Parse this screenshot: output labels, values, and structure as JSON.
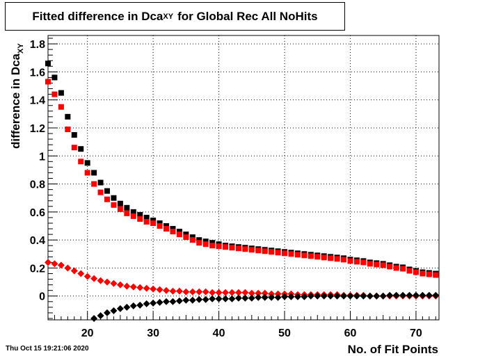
{
  "title": {
    "prefix": "Fitted difference in Dca",
    "subscript": "XY",
    "suffix": "for Global Rec All NoHits"
  },
  "timestamp": "Thu Oct 15 19:21:06 2020",
  "chart_data": {
    "type": "scatter",
    "title": "Fitted difference in Dca_XY for Global Rec All NoHits",
    "xlabel": "No. of Fit Points",
    "ylabel_prefix": "difference in Dca",
    "ylabel_subscript": "XY",
    "xlim": [
      14,
      73.5
    ],
    "ylim": [
      -0.17,
      1.86
    ],
    "grid": true,
    "xticks": [
      20,
      30,
      40,
      50,
      60,
      70
    ],
    "yticks": [
      0,
      0.2,
      0.4,
      0.6,
      0.8,
      1,
      1.2,
      1.4,
      1.6,
      1.8
    ],
    "ytick_labels": [
      "0",
      "0.2",
      "0.4",
      "0.6",
      "0.8",
      "1",
      "1.2",
      "1.4",
      "1.6",
      "1.8"
    ],
    "series": [
      {
        "color": "#000000",
        "marker": "square",
        "x": [
          14,
          15,
          16,
          17,
          18,
          19,
          20,
          21,
          22,
          23,
          24,
          25,
          26,
          27,
          28,
          29,
          30,
          31,
          32,
          33,
          34,
          35,
          36,
          37,
          38,
          39,
          40,
          41,
          42,
          43,
          44,
          45,
          46,
          47,
          48,
          49,
          50,
          51,
          52,
          53,
          54,
          55,
          56,
          57,
          58,
          59,
          60,
          61,
          62,
          63,
          64,
          65,
          66,
          67,
          68,
          69,
          70,
          71,
          72,
          73
        ],
        "y": [
          1.66,
          1.56,
          1.45,
          1.28,
          1.15,
          1.05,
          0.95,
          0.88,
          0.81,
          0.75,
          0.7,
          0.66,
          0.63,
          0.6,
          0.58,
          0.56,
          0.54,
          0.52,
          0.5,
          0.48,
          0.46,
          0.44,
          0.42,
          0.4,
          0.39,
          0.38,
          0.37,
          0.36,
          0.355,
          0.35,
          0.345,
          0.34,
          0.335,
          0.33,
          0.325,
          0.32,
          0.315,
          0.31,
          0.305,
          0.3,
          0.295,
          0.29,
          0.285,
          0.28,
          0.275,
          0.27,
          0.26,
          0.255,
          0.25,
          0.24,
          0.235,
          0.23,
          0.22,
          0.21,
          0.205,
          0.19,
          0.18,
          0.17,
          0.165,
          0.16
        ]
      },
      {
        "color": "#ff0000",
        "marker": "square",
        "x": [
          14,
          15,
          16,
          17,
          18,
          19,
          20,
          21,
          22,
          23,
          24,
          25,
          26,
          27,
          28,
          29,
          30,
          31,
          32,
          33,
          34,
          35,
          36,
          37,
          38,
          39,
          40,
          41,
          42,
          43,
          44,
          45,
          46,
          47,
          48,
          49,
          50,
          51,
          52,
          53,
          54,
          55,
          56,
          57,
          58,
          59,
          60,
          61,
          62,
          63,
          64,
          65,
          66,
          67,
          68,
          69,
          70,
          71,
          72,
          73
        ],
        "y": [
          1.53,
          1.44,
          1.35,
          1.19,
          1.06,
          0.96,
          0.88,
          0.8,
          0.74,
          0.69,
          0.65,
          0.62,
          0.59,
          0.57,
          0.55,
          0.53,
          0.52,
          0.5,
          0.48,
          0.46,
          0.44,
          0.42,
          0.4,
          0.38,
          0.37,
          0.36,
          0.355,
          0.35,
          0.345,
          0.34,
          0.335,
          0.33,
          0.325,
          0.32,
          0.315,
          0.31,
          0.305,
          0.3,
          0.295,
          0.29,
          0.285,
          0.28,
          0.275,
          0.27,
          0.265,
          0.26,
          0.25,
          0.245,
          0.24,
          0.23,
          0.225,
          0.22,
          0.21,
          0.2,
          0.195,
          0.18,
          0.17,
          0.16,
          0.155,
          0.15
        ]
      },
      {
        "color": "#ff0000",
        "marker": "diamond",
        "x": [
          14,
          15,
          16,
          17,
          18,
          19,
          20,
          21,
          22,
          23,
          24,
          25,
          26,
          27,
          28,
          29,
          30,
          31,
          32,
          33,
          34,
          35,
          36,
          37,
          38,
          39,
          40,
          41,
          42,
          43,
          44,
          45,
          46,
          47,
          48,
          49,
          50,
          51,
          52,
          53,
          54,
          55,
          56,
          57,
          58,
          59,
          60,
          61,
          62,
          63,
          64,
          65,
          66,
          67,
          68,
          69,
          70,
          71,
          72,
          73
        ],
        "y": [
          0.24,
          0.23,
          0.22,
          0.2,
          0.18,
          0.16,
          0.14,
          0.125,
          0.11,
          0.1,
          0.09,
          0.08,
          0.07,
          0.065,
          0.06,
          0.055,
          0.05,
          0.045,
          0.04,
          0.035,
          0.035,
          0.03,
          0.03,
          0.03,
          0.03,
          0.025,
          0.025,
          0.025,
          0.025,
          0.025,
          0.025,
          0.02,
          0.02,
          0.02,
          0.015,
          0.015,
          0.015,
          0.015,
          0.01,
          0.01,
          0.01,
          0.01,
          0.01,
          0.01,
          0.01,
          0.005,
          0.005,
          0.005,
          0.005,
          0.0,
          0.0,
          0.0,
          0.0,
          0.0,
          0.0,
          0.0,
          0.0,
          0.0,
          0.0,
          0.0
        ]
      },
      {
        "color": "#000000",
        "marker": "diamond",
        "x": [
          21,
          22,
          23,
          24,
          25,
          26,
          27,
          28,
          29,
          30,
          31,
          32,
          33,
          34,
          35,
          36,
          37,
          38,
          39,
          40,
          41,
          42,
          43,
          44,
          45,
          46,
          47,
          48,
          49,
          50,
          51,
          52,
          53,
          54,
          55,
          56,
          57,
          58,
          59,
          60,
          61,
          62,
          63,
          64,
          65,
          66,
          67,
          68,
          69,
          70,
          71,
          72,
          73
        ],
        "y": [
          -0.16,
          -0.14,
          -0.12,
          -0.105,
          -0.09,
          -0.08,
          -0.07,
          -0.065,
          -0.055,
          -0.05,
          -0.045,
          -0.04,
          -0.04,
          -0.035,
          -0.03,
          -0.03,
          -0.025,
          -0.025,
          -0.02,
          -0.02,
          -0.02,
          -0.02,
          -0.015,
          -0.015,
          -0.015,
          -0.01,
          -0.01,
          -0.01,
          -0.01,
          -0.005,
          -0.005,
          -0.005,
          -0.005,
          0.0,
          0.0,
          0.0,
          0.0,
          0.0,
          0.0,
          0.0,
          0.0,
          0.0,
          0.0,
          0.0,
          0.0,
          0.005,
          0.005,
          0.005,
          0.005,
          0.005,
          0.005,
          0.005,
          0.005
        ]
      }
    ]
  }
}
